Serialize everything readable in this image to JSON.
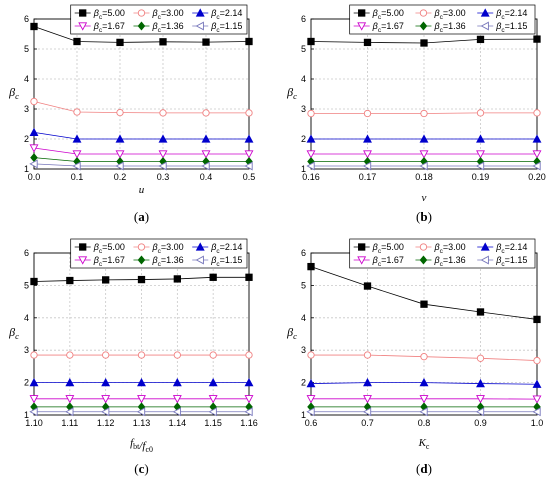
{
  "legend_entries": [
    "β_c=5.00",
    "β_c=3.00",
    "β_c=2.14",
    "β_c=1.67",
    "β_c=1.36",
    "β_c=1.15"
  ],
  "series_colors": [
    "#000000",
    "#f08080",
    "#0000cc",
    "#cc00cc",
    "#006600",
    "#7777bb"
  ],
  "chart_data": [
    {
      "type": "line",
      "panel_label": "a",
      "ylabel": "β_c",
      "xlabel": "u",
      "x": [
        0.0,
        0.1,
        0.2,
        0.3,
        0.4,
        0.5
      ],
      "xticks": [
        "0.0",
        "0.1",
        "0.2",
        "0.3",
        "0.4",
        "0.5"
      ],
      "xlim": [
        0.0,
        0.5
      ],
      "ylim": [
        1,
        6
      ],
      "yticks": [
        "1",
        "2",
        "3",
        "4",
        "5",
        "6"
      ],
      "grid": true,
      "legend": "top-right",
      "series": [
        {
          "name": "β_c=5.00",
          "values": [
            5.75,
            5.25,
            5.22,
            5.24,
            5.23,
            5.25
          ]
        },
        {
          "name": "β_c=3.00",
          "values": [
            3.25,
            2.9,
            2.88,
            2.87,
            2.87,
            2.87
          ]
        },
        {
          "name": "β_c=2.14",
          "values": [
            2.22,
            2.0,
            2.0,
            2.0,
            2.0,
            2.0
          ]
        },
        {
          "name": "β_c=1.67",
          "values": [
            1.7,
            1.5,
            1.5,
            1.5,
            1.5,
            1.5
          ]
        },
        {
          "name": "β_c=1.36",
          "values": [
            1.38,
            1.25,
            1.25,
            1.25,
            1.25,
            1.25
          ]
        },
        {
          "name": "β_c=1.15",
          "values": [
            1.17,
            1.1,
            1.1,
            1.1,
            1.1,
            1.1
          ]
        }
      ]
    },
    {
      "type": "line",
      "panel_label": "b",
      "ylabel": "β_c",
      "xlabel": "v",
      "x": [
        0.16,
        0.17,
        0.18,
        0.19,
        0.2
      ],
      "xticks": [
        "0.16",
        "0.17",
        "0.18",
        "0.19",
        "0.20"
      ],
      "xlim": [
        0.16,
        0.2
      ],
      "ylim": [
        1,
        6
      ],
      "yticks": [
        "1",
        "2",
        "3",
        "4",
        "5",
        "6"
      ],
      "grid": true,
      "legend": "top-right",
      "series": [
        {
          "name": "β_c=5.00",
          "values": [
            5.25,
            5.22,
            5.2,
            5.32,
            5.33
          ]
        },
        {
          "name": "β_c=3.00",
          "values": [
            2.85,
            2.85,
            2.85,
            2.87,
            2.87
          ]
        },
        {
          "name": "β_c=2.14",
          "values": [
            2.0,
            2.0,
            2.0,
            2.0,
            2.0
          ]
        },
        {
          "name": "β_c=1.67",
          "values": [
            1.5,
            1.5,
            1.5,
            1.5,
            1.5
          ]
        },
        {
          "name": "β_c=1.36",
          "values": [
            1.25,
            1.25,
            1.25,
            1.25,
            1.25
          ]
        },
        {
          "name": "β_c=1.15",
          "values": [
            1.1,
            1.1,
            1.1,
            1.1,
            1.1
          ]
        }
      ]
    },
    {
      "type": "line",
      "panel_label": "c",
      "ylabel": "β_c",
      "xlabel": "f_bt/f_c0",
      "x": [
        1.1,
        1.11,
        1.12,
        1.13,
        1.14,
        1.15,
        1.16
      ],
      "xticks": [
        "1.10",
        "1.11",
        "1.12",
        "1.13",
        "1.14",
        "1.15",
        "1.16"
      ],
      "xlim": [
        1.1,
        1.16
      ],
      "ylim": [
        1,
        6
      ],
      "yticks": [
        "1",
        "2",
        "3",
        "4",
        "5",
        "6"
      ],
      "grid": true,
      "legend": "top-right",
      "series": [
        {
          "name": "β_c=5.00",
          "values": [
            5.12,
            5.15,
            5.17,
            5.18,
            5.2,
            5.25,
            5.25
          ]
        },
        {
          "name": "β_c=3.00",
          "values": [
            2.85,
            2.85,
            2.85,
            2.85,
            2.85,
            2.85,
            2.85
          ]
        },
        {
          "name": "β_c=2.14",
          "values": [
            2.0,
            2.0,
            2.0,
            2.0,
            2.0,
            2.0,
            2.0
          ]
        },
        {
          "name": "β_c=1.67",
          "values": [
            1.5,
            1.5,
            1.5,
            1.5,
            1.5,
            1.5,
            1.5
          ]
        },
        {
          "name": "β_c=1.36",
          "values": [
            1.25,
            1.25,
            1.25,
            1.25,
            1.25,
            1.25,
            1.25
          ]
        },
        {
          "name": "β_c=1.15",
          "values": [
            1.1,
            1.1,
            1.1,
            1.1,
            1.1,
            1.1,
            1.1
          ]
        }
      ]
    },
    {
      "type": "line",
      "panel_label": "d",
      "ylabel": "β_c",
      "xlabel": "K_c",
      "x": [
        0.6,
        0.7,
        0.8,
        0.9,
        1.0
      ],
      "xticks": [
        "0.6",
        "0.7",
        "0.8",
        "0.9",
        "1.0"
      ],
      "xlim": [
        0.6,
        1.0
      ],
      "ylim": [
        1,
        6
      ],
      "yticks": [
        "1",
        "2",
        "3",
        "4",
        "5",
        "6"
      ],
      "grid": true,
      "legend": "top-right",
      "series": [
        {
          "name": "β_c=5.00",
          "values": [
            5.58,
            4.98,
            4.42,
            4.18,
            3.95
          ]
        },
        {
          "name": "β_c=3.00",
          "values": [
            2.85,
            2.85,
            2.8,
            2.75,
            2.68
          ]
        },
        {
          "name": "β_c=2.14",
          "values": [
            1.97,
            2.0,
            2.0,
            1.97,
            1.95
          ]
        },
        {
          "name": "β_c=1.67",
          "values": [
            1.5,
            1.5,
            1.5,
            1.5,
            1.49
          ]
        },
        {
          "name": "β_c=1.36",
          "values": [
            1.25,
            1.25,
            1.25,
            1.25,
            1.25
          ]
        },
        {
          "name": "β_c=1.15",
          "values": [
            1.1,
            1.1,
            1.1,
            1.1,
            1.1
          ]
        }
      ]
    }
  ]
}
